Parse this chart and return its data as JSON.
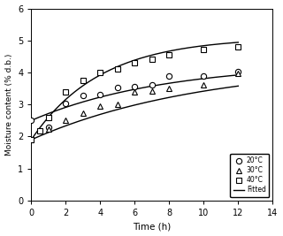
{
  "title": "",
  "xlabel": "Time (h)",
  "ylabel": "Moisture content (% d.b.)",
  "xlim": [
    0,
    14
  ],
  "ylim": [
    0,
    6
  ],
  "xticks": [
    0,
    2,
    4,
    6,
    8,
    10,
    12,
    14
  ],
  "yticks": [
    0,
    1,
    2,
    3,
    4,
    5,
    6
  ],
  "data_20": {
    "x": [
      0,
      1,
      2,
      3,
      4,
      5,
      6,
      7,
      8,
      10,
      12
    ],
    "y": [
      2.5,
      2.28,
      3.02,
      3.28,
      3.3,
      3.52,
      3.55,
      3.6,
      3.88,
      3.9,
      4.02
    ],
    "label": "20°C",
    "marker": "o"
  },
  "data_30": {
    "x": [
      0,
      1,
      2,
      3,
      4,
      5,
      6,
      7,
      8,
      10,
      12
    ],
    "y": [
      1.9,
      2.22,
      2.52,
      2.72,
      2.95,
      3.0,
      3.38,
      3.42,
      3.5,
      3.6,
      3.98
    ],
    "label": "30°C",
    "marker": "^"
  },
  "data_40": {
    "x": [
      0,
      0.5,
      1,
      2,
      3,
      4,
      5,
      6,
      7,
      8,
      10,
      12
    ],
    "y": [
      1.9,
      2.18,
      2.58,
      3.38,
      3.75,
      4.0,
      4.1,
      4.3,
      4.42,
      4.55,
      4.72,
      4.8
    ],
    "label": "40°C",
    "marker": "s"
  },
  "fit_20": {
    "Me": 4.3,
    "M0": 2.5,
    "k": 0.13
  },
  "fit_30": {
    "Me": 4.3,
    "M0": 1.9,
    "k": 0.1
  },
  "fit_40": {
    "Me": 5.1,
    "M0": 1.9,
    "k": 0.25
  },
  "line_color": "black",
  "background_color": "#ffffff",
  "legend_loc": "lower right",
  "markersize": 4.5,
  "linewidth": 1.0
}
